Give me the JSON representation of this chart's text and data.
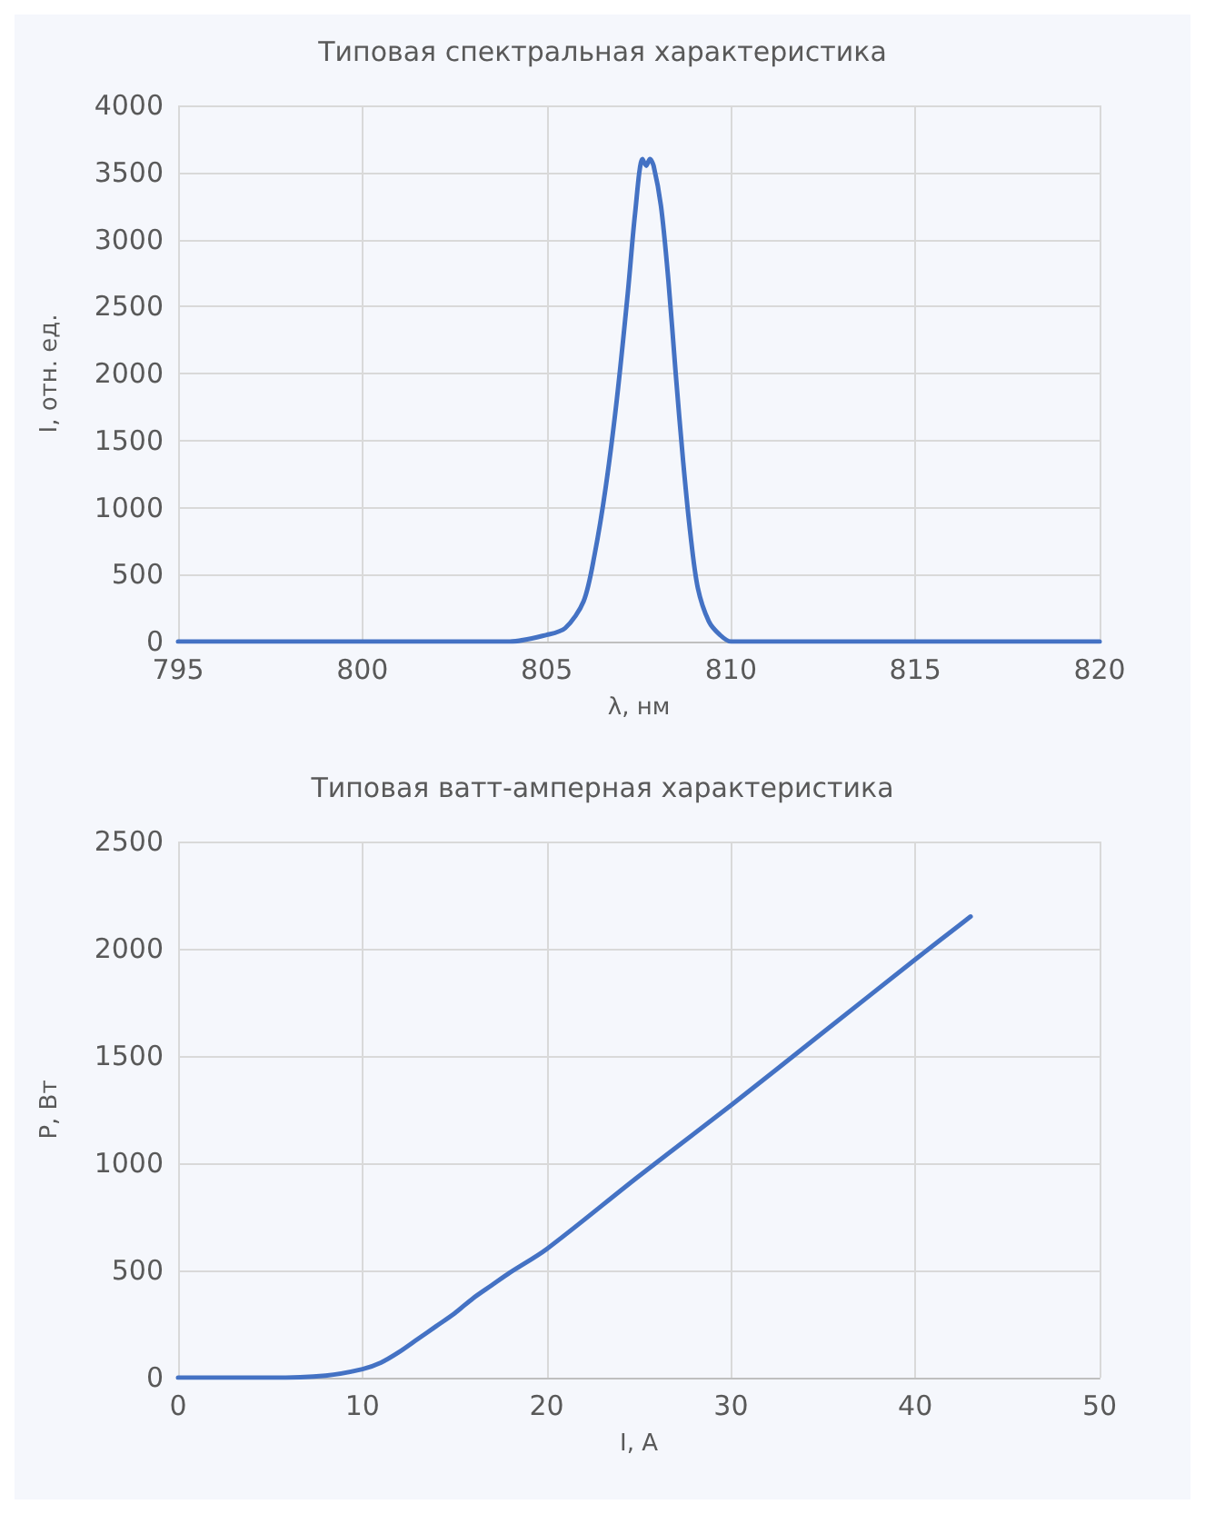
{
  "chart_data": [
    {
      "type": "line",
      "title": "Типовая спектральная характеристика",
      "xlabel": "λ, нм",
      "ylabel": "I, отн. ед.",
      "x": [
        795,
        800,
        804,
        805,
        805.5,
        806,
        806.3,
        806.6,
        806.9,
        807.2,
        807.4,
        807.6,
        807.7,
        807.8,
        807.9,
        808.1,
        808.3,
        808.5,
        808.7,
        808.9,
        809.1,
        809.4,
        809.7,
        810,
        811,
        815,
        820
      ],
      "series": [
        {
          "color": "#4472c4",
          "values": [
            0,
            0,
            0,
            50,
            100,
            300,
            650,
            1150,
            1800,
            2600,
            3200,
            3600,
            3550,
            3600,
            3550,
            3250,
            2700,
            2000,
            1350,
            800,
            400,
            150,
            50,
            0,
            0,
            0,
            0
          ]
        }
      ],
      "xlim": [
        795,
        820
      ],
      "xticks": [
        795,
        800,
        805,
        810,
        815,
        820
      ],
      "ylim": [
        0,
        4000
      ],
      "yticks": [
        0,
        500,
        1000,
        1500,
        2000,
        2500,
        3000,
        3500,
        4000
      ],
      "grid": true,
      "marker": "none",
      "line_style": "solid"
    },
    {
      "type": "line",
      "title": "Типовая ватт-амперная характеристика",
      "xlabel": "I, А",
      "ylabel": "P, Вт",
      "x": [
        0,
        5,
        8,
        10,
        11,
        12,
        13,
        14,
        15,
        16,
        17,
        18,
        20,
        25,
        30,
        35,
        40,
        43
      ],
      "series": [
        {
          "color": "#4472c4",
          "values": [
            0,
            0,
            10,
            40,
            70,
            120,
            180,
            240,
            300,
            370,
            430,
            490,
            600,
            940,
            1270,
            1610,
            1950,
            2150
          ]
        }
      ],
      "xlim": [
        0,
        50
      ],
      "xticks": [
        0,
        10,
        20,
        30,
        40,
        50
      ],
      "ylim": [
        0,
        2500
      ],
      "yticks": [
        0,
        500,
        1000,
        1500,
        2000,
        2500
      ],
      "grid": true,
      "marker": "none",
      "line_style": "solid"
    }
  ]
}
